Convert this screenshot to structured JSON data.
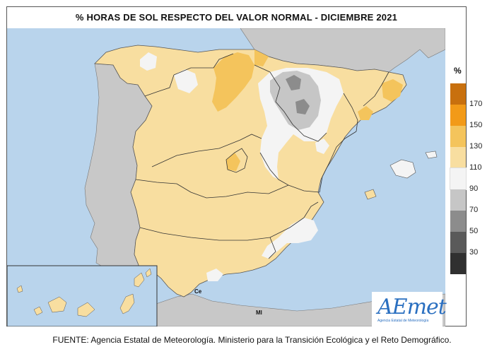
{
  "title": "% HORAS DE SOL RESPECTO DEL VALOR NORMAL - DICIEMBRE 2021",
  "legend": {
    "unit": "%",
    "ticks": [
      "170",
      "150",
      "130",
      "110",
      "90",
      "70",
      "50",
      "30"
    ],
    "colors": [
      "#c8700e",
      "#f29a18",
      "#f4c45c",
      "#f8dea0",
      "#f4f4f4",
      "#c6c6c6",
      "#8c8c8c",
      "#5a5a5a",
      "#303030"
    ]
  },
  "places": {
    "ceuta": "Ce",
    "melilla": "Ml"
  },
  "logo": {
    "name": "AEmet",
    "tagline": "Agencia Estatal de Meteorología"
  },
  "footer": "FUENTE: Agencia Estatal de Meteorología. Ministerio para la Transición Ecológica y el Reto Demográfico.",
  "colors": {
    "sea": "#b9d4ec",
    "foreign_land": "#c8c8c8",
    "above_normal": "#f8dea0",
    "well_above": "#f4c45c",
    "near_normal": "#f4f4f4",
    "below_normal": "#c6c6c6",
    "well_below": "#8c8c8c"
  }
}
